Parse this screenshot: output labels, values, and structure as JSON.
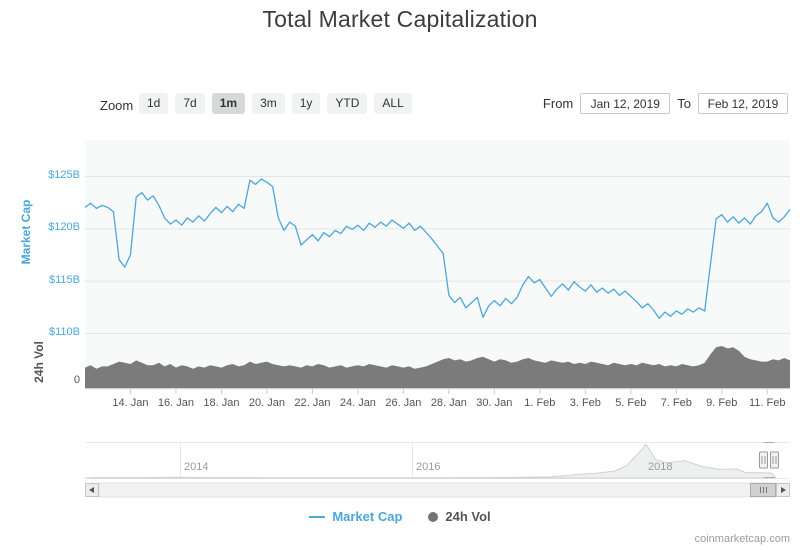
{
  "title": "Total Market Capitalization",
  "toolbar": {
    "zoom_label": "Zoom",
    "zoom_buttons": [
      "1d",
      "7d",
      "1m",
      "3m",
      "1y",
      "YTD",
      "ALL"
    ],
    "zoom_selected": "1m",
    "from_label": "From",
    "from_value": "Jan 12, 2019",
    "to_label": "To",
    "to_value": "Feb 12, 2019"
  },
  "chart_data": {
    "type": "line",
    "title": "Total Market Capitalization",
    "x_start": "Jan 12, 2019",
    "x_end": "Feb 12, 2019",
    "points_per_day": 4,
    "grid": true,
    "legend_position": "bottom",
    "y_axis_titles": [
      "Market Cap",
      "24h Vol"
    ],
    "y_ticks": [
      125,
      120,
      115,
      110
    ],
    "x_tick_days": [
      2,
      4,
      6,
      8,
      10,
      12,
      14,
      16,
      18,
      20,
      22,
      24,
      26,
      28,
      30
    ],
    "x_tick_labels": [
      "14. Jan",
      "16. Jan",
      "18. Jan",
      "20. Jan",
      "22. Jan",
      "24. Jan",
      "26. Jan",
      "28. Jan",
      "30. Jan",
      "1. Feb",
      "3. Feb",
      "5. Feb",
      "7. Feb",
      "9. Feb",
      "11. Feb"
    ],
    "series": [
      {
        "name": "Market Cap",
        "type": "line",
        "color": "#4BA7DC",
        "unit": "billion USD",
        "ylim": [
          108.5,
          127
        ],
        "axis_labels": [
          "$125B",
          "$120B",
          "$115B",
          "$110B"
        ],
        "values": [
          122.0,
          122.4,
          121.9,
          122.2,
          122.0,
          121.6,
          117.0,
          116.3,
          117.5,
          123.0,
          123.4,
          122.7,
          123.1,
          122.2,
          121.0,
          120.4,
          120.8,
          120.3,
          121.0,
          120.6,
          121.2,
          120.7,
          121.4,
          122.0,
          121.5,
          122.1,
          121.6,
          122.3,
          121.9,
          124.6,
          124.2,
          124.7,
          124.4,
          124.0,
          121.0,
          119.8,
          120.6,
          120.2,
          118.4,
          118.9,
          119.4,
          118.8,
          119.6,
          119.2,
          119.8,
          119.5,
          120.2,
          119.9,
          120.3,
          119.8,
          120.5,
          120.1,
          120.6,
          120.2,
          120.8,
          120.4,
          120.0,
          120.5,
          119.8,
          120.2,
          119.6,
          119.0,
          118.3,
          117.6,
          113.6,
          112.9,
          113.4,
          112.4,
          112.9,
          113.4,
          111.5,
          112.6,
          113.1,
          112.6,
          113.3,
          112.8,
          113.4,
          114.6,
          115.4,
          114.8,
          115.1,
          114.3,
          113.5,
          114.2,
          114.7,
          114.1,
          114.9,
          114.4,
          114.0,
          114.6,
          113.9,
          114.3,
          113.8,
          114.2,
          113.6,
          114.0,
          113.5,
          113.0,
          112.4,
          112.8,
          112.2,
          111.4,
          112.0,
          111.6,
          112.1,
          111.8,
          112.3,
          112.0,
          112.4,
          112.1,
          116.5,
          120.9,
          121.3,
          120.6,
          121.1,
          120.5,
          121.0,
          120.4,
          121.2,
          121.6,
          122.4,
          121.0,
          120.6,
          121.1,
          121.8
        ]
      },
      {
        "name": "24h Vol",
        "type": "area",
        "color": "#7B7B7B",
        "unit": "billion USD",
        "ylim": [
          0,
          40
        ],
        "axis_labels": [
          "0"
        ],
        "values": [
          17,
          19,
          16,
          18,
          18,
          20,
          22,
          21,
          20,
          23,
          21,
          19,
          19,
          21,
          18,
          20,
          17,
          19,
          18,
          16,
          18,
          17,
          19,
          18,
          17,
          19,
          20,
          18,
          19,
          22,
          20,
          21,
          22,
          20,
          19,
          18,
          19,
          18,
          17,
          19,
          18,
          20,
          19,
          17,
          18,
          19,
          17,
          18,
          19,
          18,
          20,
          19,
          18,
          17,
          19,
          18,
          17,
          18,
          16,
          17,
          18,
          20,
          22,
          24,
          25,
          23,
          24,
          22,
          23,
          25,
          26,
          24,
          22,
          24,
          23,
          21,
          22,
          24,
          25,
          23,
          22,
          21,
          23,
          22,
          21,
          22,
          20,
          21,
          20,
          22,
          21,
          20,
          19,
          21,
          20,
          19,
          20,
          19,
          21,
          20,
          19,
          20,
          18,
          19,
          18,
          20,
          19,
          18,
          19,
          21,
          28,
          34,
          35,
          33,
          34,
          31,
          26,
          24,
          23,
          22,
          22,
          24,
          23,
          25,
          23
        ]
      }
    ],
    "navigator": {
      "years": [
        2014,
        2016,
        2018
      ],
      "year_labels": [
        "2014",
        "2016",
        "2018"
      ],
      "sparkline_max": 830,
      "sparkline": [
        [
          2013.25,
          10
        ],
        [
          2013.6,
          10
        ],
        [
          2013.95,
          15
        ],
        [
          2014.0,
          14
        ],
        [
          2014.3,
          9
        ],
        [
          2014.7,
          7
        ],
        [
          2015.0,
          5
        ],
        [
          2015.3,
          4
        ],
        [
          2015.7,
          5
        ],
        [
          2016.0,
          7
        ],
        [
          2016.4,
          9
        ],
        [
          2016.8,
          13
        ],
        [
          2017.0,
          18
        ],
        [
          2017.2,
          28
        ],
        [
          2017.4,
          80
        ],
        [
          2017.5,
          100
        ],
        [
          2017.6,
          120
        ],
        [
          2017.75,
          170
        ],
        [
          2017.85,
          300
        ],
        [
          2017.95,
          600
        ],
        [
          2018.02,
          820
        ],
        [
          2018.1,
          450
        ],
        [
          2018.2,
          370
        ],
        [
          2018.35,
          420
        ],
        [
          2018.5,
          280
        ],
        [
          2018.65,
          210
        ],
        [
          2018.8,
          220
        ],
        [
          2018.88,
          130
        ],
        [
          2019.0,
          130
        ],
        [
          2019.1,
          120
        ]
      ]
    }
  },
  "legend": {
    "items": [
      {
        "label": "Market Cap",
        "color": "#4BA7DC",
        "marker": "line"
      },
      {
        "label": "24h Vol",
        "color": "#757575",
        "marker": "circle"
      }
    ]
  },
  "icons": {
    "scrollbar_left": "left-arrow triangle",
    "scrollbar_right": "right-arrow triangle",
    "navigator_handle": "grip handle"
  },
  "watermark": "coinmarketcap.com"
}
